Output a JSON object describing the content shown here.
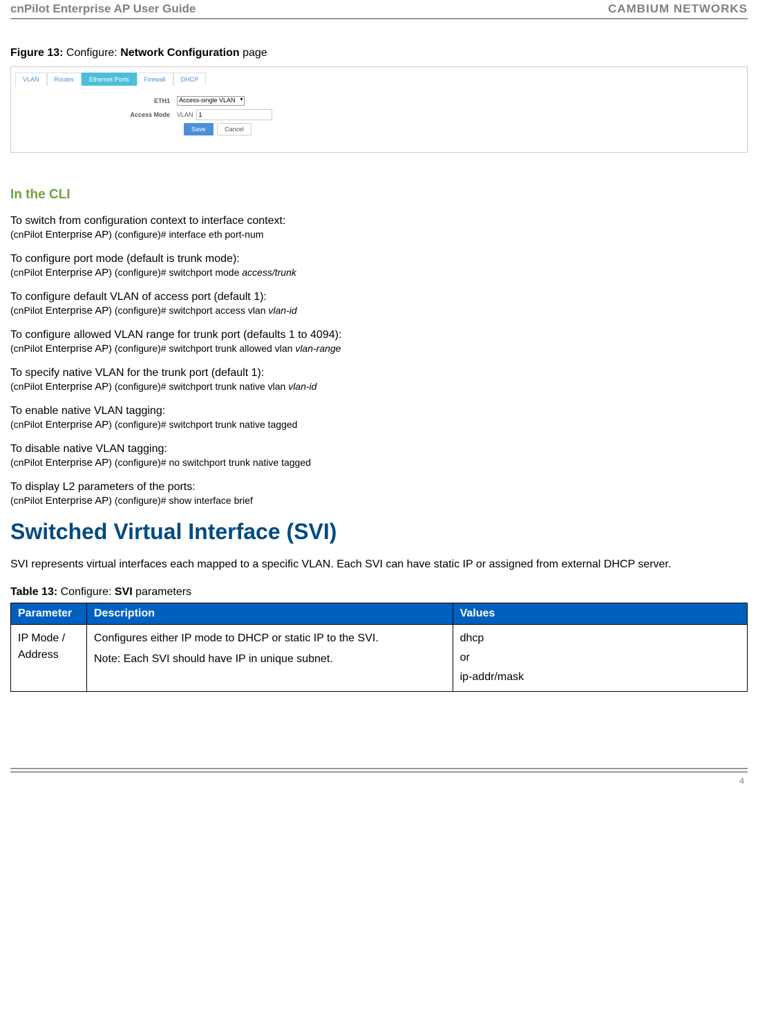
{
  "header": {
    "left": "cnPilot Enterprise AP User Guide",
    "right": "CAMBIUM NETWORKS"
  },
  "figure": {
    "prefix": "Figure 13:",
    "mid": " Configure: ",
    "bold": "Network Configuration",
    "suffix": " page"
  },
  "screenshot": {
    "tabs": [
      "VLAN",
      "Routes",
      "Ethernet Ports",
      "Firewall",
      "DHCP"
    ],
    "active_tab_index": 2,
    "row1_label": "ETH1",
    "row1_select": "Access-single VLAN",
    "row2_label": "Access Mode",
    "row2_prefix": "VLAN",
    "row2_value": "1",
    "save": "Save",
    "cancel": "Cancel"
  },
  "cli_heading": "In the CLI",
  "cli_items": [
    {
      "title": "To switch from configuration context to interface context:",
      "prefix": "(cnPilot ",
      "ap": "Enterprise AP",
      "rest": ") (configure)# interface eth port-num",
      "italic": ""
    },
    {
      "title": "To configure port mode (default is trunk mode):",
      "prefix": "(cnPilot ",
      "ap": "Enterprise AP",
      "rest": ") (configure)# switchport mode ",
      "italic": "access/trunk"
    },
    {
      "title": "To configure default VLAN of access port (default 1):",
      "prefix": "(cnPilot ",
      "ap": "Enterprise AP",
      "rest": ") (configure)# switchport access vlan ",
      "italic": "vlan-id"
    },
    {
      "title": "To configure allowed VLAN range for trunk port (defaults 1 to 4094):",
      "prefix": "(cnPilot ",
      "ap": "Enterprise AP",
      "rest": ") (configure)# switchport trunk allowed vlan ",
      "italic": "vlan-range"
    },
    {
      "title": "To specify native VLAN for the trunk port (default 1):",
      "prefix": "(cnPilot ",
      "ap": "Enterprise AP",
      "rest": ") (configure)# switchport trunk native vlan ",
      "italic": "vlan-id"
    },
    {
      "title": "To enable native VLAN tagging:",
      "prefix": "(cnPilot ",
      "ap": "Enterprise AP",
      "rest": ") (configure)# switchport trunk native tagged",
      "italic": ""
    },
    {
      "title": "To disable native VLAN tagging:",
      "title_small_colon": true,
      "prefix": "(cnPilot ",
      "ap": "Enterprise AP",
      "rest": ") (configure)# no switchport trunk native tagged",
      "italic": ""
    },
    {
      "title": "To display L2 parameters of the ports:",
      "prefix": "(cnPilot ",
      "ap": "Enterprise AP",
      "rest": ") (configure)# show interface  brief",
      "italic": ""
    }
  ],
  "svi_heading": "Switched Virtual Interface (SVI)",
  "svi_body": "SVI represents virtual interfaces each mapped to a specific VLAN. Each SVI can have static IP or assigned from external DHCP server.",
  "table_caption": {
    "prefix": "Table 13:",
    "mid": " Configure: ",
    "bold": "SVI",
    "suffix": " parameters"
  },
  "table": {
    "headers": [
      "Parameter",
      "Description",
      "Values"
    ],
    "row": {
      "param": "IP Mode / Address",
      "desc1": "Configures either IP mode to DHCP or static IP to the SVI.",
      "desc2": "Note: Each SVI should have IP in unique subnet.",
      "val1": "dhcp",
      "val2": "or",
      "val3": "ip-addr/mask"
    }
  },
  "page_number": "4"
}
